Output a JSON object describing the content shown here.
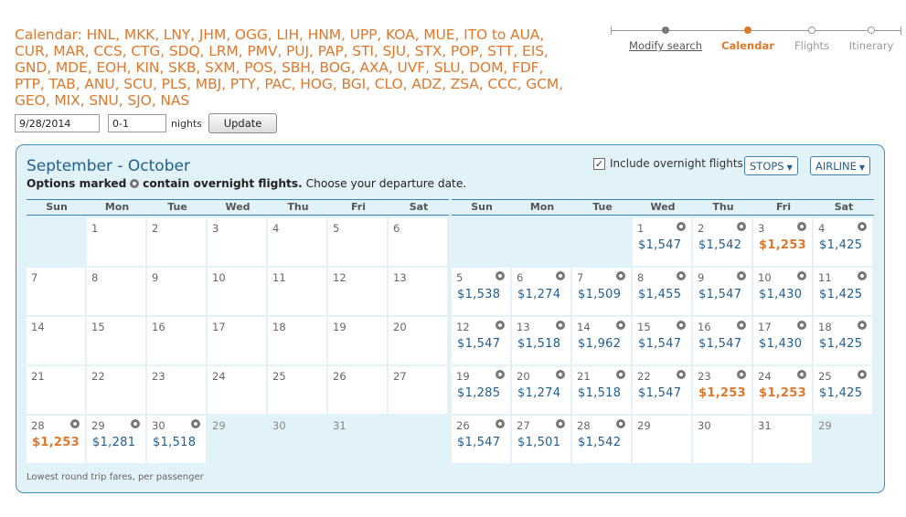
{
  "search": {
    "title": "Calendar: HNL, MKK, LNY, JHM, OGG, LIH, HNM, UPP, KOA, MUE, ITO to AUA, CUR, MAR, CCS, CTG, SDQ, LRM, PMV, PUJ, PAP, STI, SJU, STX, POP, STT, EIS, GND, MDE, EOH, KIN, SKB, SXM, POS, SBH, BOG, AXA, UVF, SLU, DOM, FDF, PTP, TAB, ANU, SCU, PLS, MBJ, PTY, PAC, HOG, BGI, CLO, ADZ, ZSA, CCC, GCM, GEO, MIX, SNU, SJO, NAS",
    "date_value": "9/28/2014",
    "nights_value": "0-1",
    "nights_label": "nights",
    "update_label": "Update"
  },
  "steps": [
    {
      "label": "Modify search",
      "state": "done"
    },
    {
      "label": "Calendar",
      "state": "current"
    },
    {
      "label": "Flights",
      "state": "future"
    },
    {
      "label": "Itinerary",
      "state": "future"
    }
  ],
  "panel": {
    "heading": "September - October",
    "sub_bold_1": "Options marked",
    "sub_bold_2": "contain overnight flights.",
    "sub_rest": "Choose your departure date.",
    "overnight_label": "Include overnight flights",
    "overnight_checked": true,
    "stops_label": "STOPS",
    "airline_label": "AIRLINE",
    "footnote": "Lowest round trip fares, per passenger"
  },
  "weekdays": [
    "Sun",
    "Mon",
    "Tue",
    "Wed",
    "Thu",
    "Fri",
    "Sat"
  ],
  "colors": {
    "accent": "#e0782c",
    "link": "#1f5e8f",
    "panel_bg": "#e1f2f9"
  },
  "months": [
    {
      "name": "September",
      "cells": [
        {
          "type": "empty"
        },
        {
          "day": "1"
        },
        {
          "day": "2"
        },
        {
          "day": "3"
        },
        {
          "day": "4"
        },
        {
          "day": "5"
        },
        {
          "day": "6"
        },
        {
          "day": "7"
        },
        {
          "day": "8"
        },
        {
          "day": "9"
        },
        {
          "day": "10"
        },
        {
          "day": "11"
        },
        {
          "day": "12"
        },
        {
          "day": "13"
        },
        {
          "day": "14"
        },
        {
          "day": "15"
        },
        {
          "day": "16"
        },
        {
          "day": "17"
        },
        {
          "day": "18"
        },
        {
          "day": "19"
        },
        {
          "day": "20"
        },
        {
          "day": "21"
        },
        {
          "day": "22"
        },
        {
          "day": "23"
        },
        {
          "day": "24"
        },
        {
          "day": "25"
        },
        {
          "day": "26"
        },
        {
          "day": "27"
        },
        {
          "day": "28",
          "price": "$1,253",
          "low": true,
          "overnight": true
        },
        {
          "day": "29",
          "price": "$1,281",
          "overnight": true
        },
        {
          "day": "30",
          "price": "$1,518",
          "overnight": true
        },
        {
          "day": "29",
          "outside": true
        },
        {
          "day": "30",
          "outside": true
        },
        {
          "day": "31",
          "outside": true
        },
        {
          "type": "empty"
        }
      ]
    },
    {
      "name": "October",
      "cells": [
        {
          "type": "empty"
        },
        {
          "type": "empty"
        },
        {
          "type": "empty"
        },
        {
          "day": "1",
          "price": "$1,547",
          "overnight": true
        },
        {
          "day": "2",
          "price": "$1,542",
          "overnight": true
        },
        {
          "day": "3",
          "price": "$1,253",
          "low": true,
          "overnight": true
        },
        {
          "day": "4",
          "price": "$1,425",
          "overnight": true
        },
        {
          "day": "5",
          "price": "$1,538",
          "overnight": true
        },
        {
          "day": "6",
          "price": "$1,274",
          "overnight": true
        },
        {
          "day": "7",
          "price": "$1,509",
          "overnight": true
        },
        {
          "day": "8",
          "price": "$1,455",
          "overnight": true
        },
        {
          "day": "9",
          "price": "$1,547",
          "overnight": true
        },
        {
          "day": "10",
          "price": "$1,430",
          "overnight": true
        },
        {
          "day": "11",
          "price": "$1,425",
          "overnight": true
        },
        {
          "day": "12",
          "price": "$1,547",
          "overnight": true
        },
        {
          "day": "13",
          "price": "$1,518",
          "overnight": true
        },
        {
          "day": "14",
          "price": "$1,962",
          "overnight": true
        },
        {
          "day": "15",
          "price": "$1,547",
          "overnight": true
        },
        {
          "day": "16",
          "price": "$1,547",
          "overnight": true
        },
        {
          "day": "17",
          "price": "$1,430",
          "overnight": true
        },
        {
          "day": "18",
          "price": "$1,425",
          "overnight": true
        },
        {
          "day": "19",
          "price": "$1,285",
          "overnight": true
        },
        {
          "day": "20",
          "price": "$1,274",
          "overnight": true
        },
        {
          "day": "21",
          "price": "$1,518",
          "overnight": true
        },
        {
          "day": "22",
          "price": "$1,547",
          "overnight": true
        },
        {
          "day": "23",
          "price": "$1,253",
          "low": true,
          "overnight": true
        },
        {
          "day": "24",
          "price": "$1,253",
          "low": true,
          "overnight": true
        },
        {
          "day": "25",
          "price": "$1,425",
          "overnight": true
        },
        {
          "day": "26",
          "price": "$1,547",
          "overnight": true
        },
        {
          "day": "27",
          "price": "$1,501",
          "overnight": true
        },
        {
          "day": "28",
          "price": "$1,542",
          "overnight": true
        },
        {
          "day": "29"
        },
        {
          "day": "30"
        },
        {
          "day": "31"
        },
        {
          "day": "29",
          "outside": true
        }
      ]
    }
  ]
}
